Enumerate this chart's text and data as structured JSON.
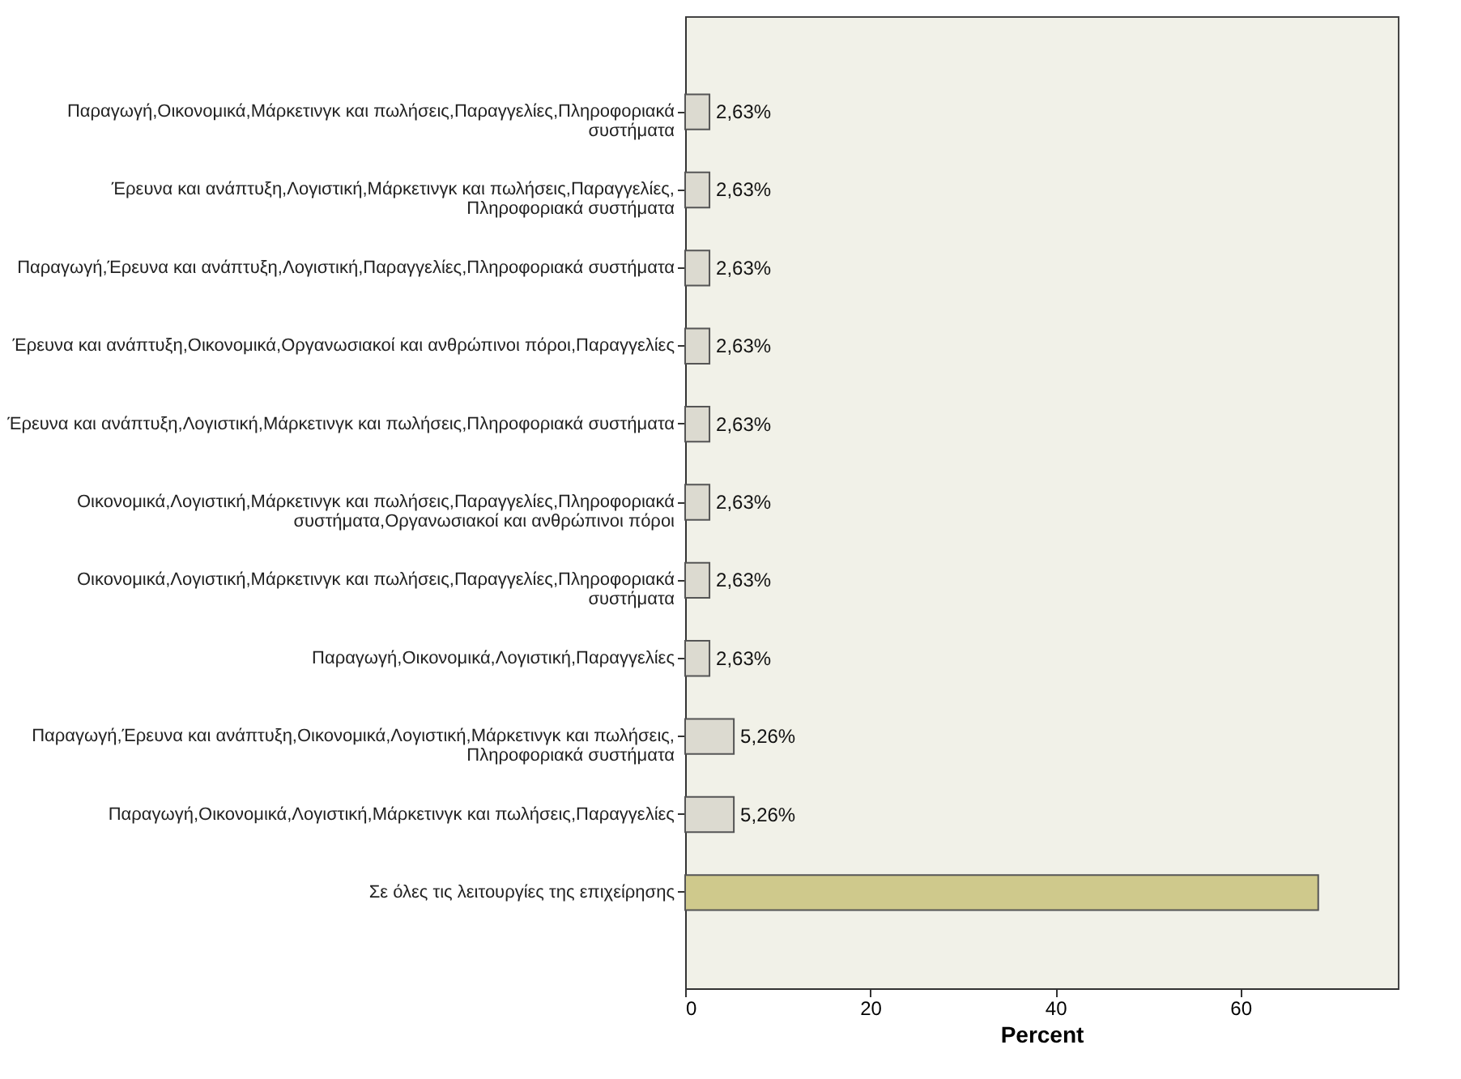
{
  "chart_data": {
    "type": "bar",
    "orientation": "horizontal",
    "xlabel": "Percent",
    "categories": [
      "Παραγωγή,Οικονομικά,Μάρκετινγκ και πωλήσεις,Παραγγελίες,Πληροφοριακά συστήματα",
      "Έρευνα και ανάπτυξη,Λογιστική,Μάρκετινγκ και πωλήσεις,Παραγγελίες,Πληροφοριακά συστήματα",
      "Παραγωγή,Έρευνα και ανάπτυξη,Λογιστική,Παραγγελίες,Πληροφοριακά συστήματα",
      "Έρευνα και ανάπτυξη,Οικονομικά,Οργανωσιακοί και ανθρώπινοι πόροι,Παραγγελίες",
      "Έρευνα και ανάπτυξη,Λογιστική,Μάρκετινγκ και πωλήσεις,Πληροφοριακά συστήματα",
      "Οικονομικά,Λογιστική,Μάρκετινγκ και πωλήσεις,Παραγγελίες,Πληροφοριακά συστήματα,Οργανωσιακοί και ανθρώπινοι πόροι",
      "Οικονομικά,Λογιστική,Μάρκετινγκ και πωλήσεις,Παραγγελίες,Πληροφοριακά συστήματα",
      "Παραγωγή,Οικονομικά,Λογιστική,Παραγγελίες",
      "Παραγωγή,Έρευνα και ανάπτυξη,Οικονομικά,Λογιστική,Μάρκετινγκ και πωλήσεις,Πληροφοριακά συστήματα",
      "Παραγωγή,Οικονομικά,Λογιστική,Μάρκετινγκ και πωλήσεις,Παραγγελίες",
      "Σε όλες τις λειτουργίες της επιχείρησης"
    ],
    "values": [
      2.63,
      2.63,
      2.63,
      2.63,
      2.63,
      2.63,
      2.63,
      2.63,
      5.26,
      5.26,
      68.4
    ],
    "value_labels": [
      "2,63%",
      "2,63%",
      "2,63%",
      "2,63%",
      "2,63%",
      "2,63%",
      "2,63%",
      "2,63%",
      "5,26%",
      "5,26%",
      null
    ],
    "colors": [
      "#dcdad0",
      "#dcdad0",
      "#dcdad0",
      "#dcdad0",
      "#dcdad0",
      "#dcdad0",
      "#dcdad0",
      "#dcdad0",
      "#dcdad0",
      "#dcdad0",
      "#cfc98c"
    ],
    "xlim": [
      0,
      77
    ],
    "xticks": [
      0,
      20,
      40,
      60
    ],
    "grid": false
  }
}
